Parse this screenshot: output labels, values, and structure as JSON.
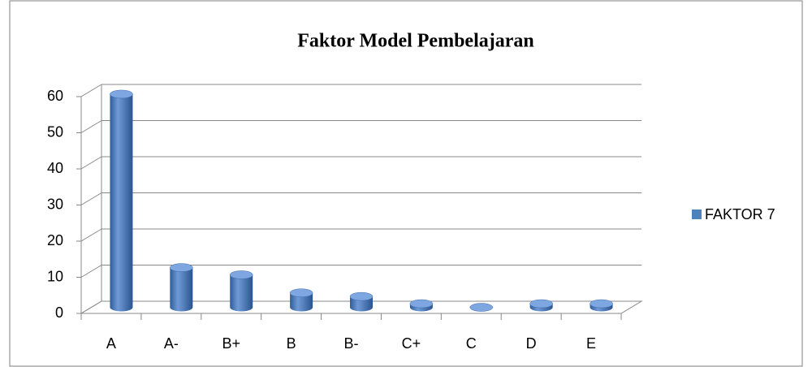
{
  "chart_data": {
    "type": "bar",
    "title": "Faktor Model Pembelajaran",
    "categories": [
      "A",
      "A-",
      "B+",
      "B",
      "B-",
      "C+",
      "C",
      "D",
      "E"
    ],
    "series": [
      {
        "name": "FAKTOR 7",
        "color": "#4f81bd",
        "values": [
          59,
          11,
          9,
          4,
          3,
          1,
          0,
          1,
          1
        ]
      }
    ],
    "ylim": [
      0,
      60
    ],
    "yticks": [
      0,
      10,
      20,
      30,
      40,
      50,
      60
    ],
    "grid": true,
    "legend": "right"
  }
}
